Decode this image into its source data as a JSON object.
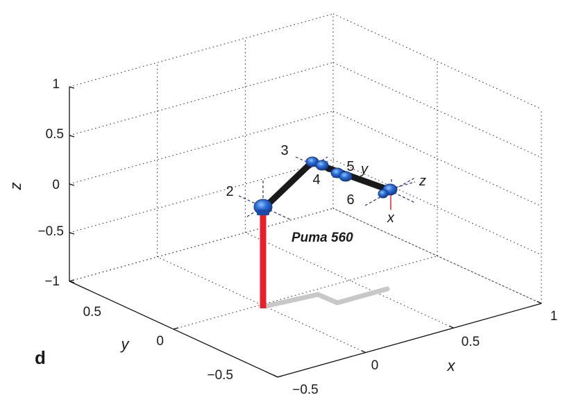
{
  "panel_label": "d",
  "chart_data": {
    "type": "3d-line",
    "xlabel": "x",
    "ylabel": "y",
    "zlabel": "z",
    "xlim": [
      -0.5,
      1
    ],
    "ylim": [
      -0.5,
      0.5
    ],
    "zlim": [
      -1,
      1
    ],
    "x_ticks": [
      "−0.5",
      "0",
      "0.5",
      "1"
    ],
    "y_ticks": [
      "−0.5",
      "0",
      "0.5"
    ],
    "z_ticks": [
      "−1",
      "−0.5",
      "0",
      "0.5",
      "1"
    ],
    "grid": true,
    "robot_name": "Puma 560",
    "joint_labels": [
      "2",
      "3",
      "4",
      "5",
      "6"
    ],
    "tool_frame_labels": [
      "x",
      "y",
      "z"
    ],
    "colors": {
      "pedestal": "#e8202a",
      "links": "#1a1a1a",
      "joints": "#2f6fd6",
      "joint_dark": "#1c4aa8",
      "shadow": "#c8c8c8",
      "frame_axes": "#2a2a8a",
      "tool_x_axis": "#e8202a"
    }
  }
}
